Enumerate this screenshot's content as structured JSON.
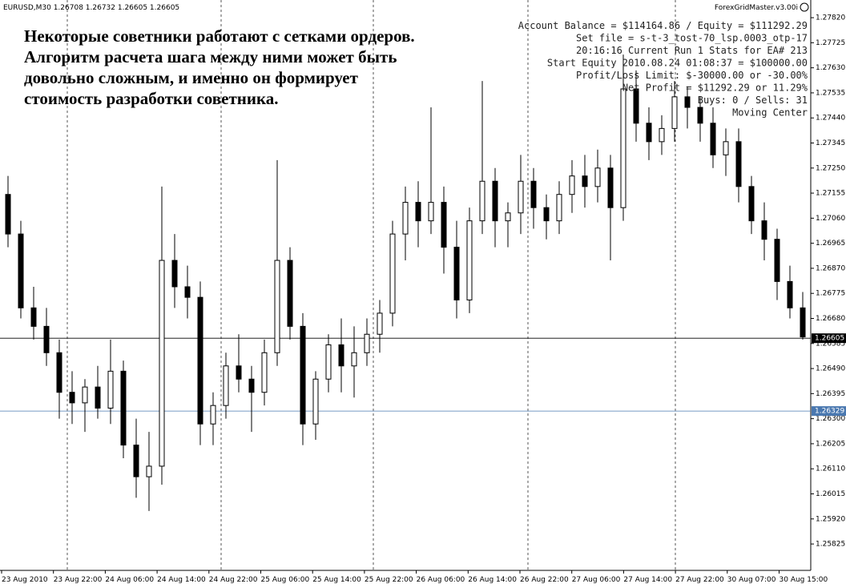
{
  "chart_data": {
    "type": "candlestick",
    "symbol_header": "EURUSD,M30  1.26708 1.26732 1.26605 1.26605",
    "ea_name": "ForexGridMaster.v3.00i",
    "annotation": [
      "Некоторые советники работают с сетками ордеров.",
      "Алгоритм расчета шага между ними может быть",
      "довольно сложным, и именно он формирует",
      "стоимость разработки советника."
    ],
    "stats": [
      "Account Balance = $114164.86 / Equity = $111292.29",
      "Set file = s-t-3_tost-70_lsp.0003_otp-17",
      "20:16:16  Current Run 1 Stats for EA# 213",
      "Start Equity 2010.08.24 01:08:37 = $100000.00",
      "Profit/Loss Limit: $-30000.00 or -30.00%",
      "Net Profit = $11292.29 or 11.29%",
      "Buys: 0  /  Sells: 31",
      "Moving Center"
    ],
    "x_labels": [
      "23 Aug 2010",
      "23 Aug 22:00",
      "24 Aug 06:00",
      "24 Aug 14:00",
      "24 Aug 22:00",
      "25 Aug 06:00",
      "25 Aug 14:00",
      "25 Aug 22:00",
      "26 Aug 06:00",
      "26 Aug 14:00",
      "26 Aug 22:00",
      "27 Aug 06:00",
      "27 Aug 14:00",
      "27 Aug 22:00",
      "30 Aug 07:00",
      "30 Aug 15:00"
    ],
    "ylim": [
      1.25725,
      1.27887
    ],
    "yticks": [
      {
        "value": 1.2782,
        "label": "1.27820"
      },
      {
        "value": 1.27725,
        "label": "1.27725"
      },
      {
        "value": 1.2763,
        "label": "1.27630"
      },
      {
        "value": 1.27535,
        "label": "1.27535"
      },
      {
        "value": 1.2744,
        "label": "1.27440"
      },
      {
        "value": 1.27345,
        "label": "1.27345"
      },
      {
        "value": 1.2725,
        "label": "1.27250"
      },
      {
        "value": 1.27155,
        "label": "1.27155"
      },
      {
        "value": 1.2706,
        "label": "1.27060"
      },
      {
        "value": 1.26965,
        "label": "1.26965"
      },
      {
        "value": 1.2687,
        "label": "1.26870"
      },
      {
        "value": 1.26775,
        "label": "1.26775"
      },
      {
        "value": 1.2668,
        "label": "1.26680"
      },
      {
        "value": 1.26585,
        "label": "1.26585"
      },
      {
        "value": 1.2649,
        "label": "1.26490"
      },
      {
        "value": 1.26395,
        "label": "1.26395"
      },
      {
        "value": 1.263,
        "label": "1.26300"
      },
      {
        "value": 1.26205,
        "label": "1.26205"
      },
      {
        "value": 1.2611,
        "label": "1.26110"
      },
      {
        "value": 1.26015,
        "label": "1.26015"
      },
      {
        "value": 1.2592,
        "label": "1.25920"
      },
      {
        "value": 1.25825,
        "label": "1.25825"
      }
    ],
    "price_markers": [
      {
        "value": 1.26605,
        "label": "1.26605",
        "color": "#000000"
      },
      {
        "value": 1.26329,
        "label": "1.26329",
        "color": "#4a78b0"
      }
    ],
    "ohlc": [
      [
        1.2715,
        1.2722,
        1.2695,
        1.27
      ],
      [
        1.27,
        1.2705,
        1.2668,
        1.2672
      ],
      [
        1.2672,
        1.268,
        1.266,
        1.2665
      ],
      [
        1.2665,
        1.2672,
        1.265,
        1.2655
      ],
      [
        1.2655,
        1.266,
        1.263,
        1.264
      ],
      [
        1.264,
        1.2648,
        1.2628,
        1.2636
      ],
      [
        1.2636,
        1.2645,
        1.2625,
        1.2642
      ],
      [
        1.2642,
        1.265,
        1.263,
        1.2634
      ],
      [
        1.2634,
        1.266,
        1.2628,
        1.2648
      ],
      [
        1.2648,
        1.2652,
        1.2615,
        1.262
      ],
      [
        1.262,
        1.263,
        1.26,
        1.2608
      ],
      [
        1.2608,
        1.2625,
        1.2595,
        1.2612
      ],
      [
        1.2612,
        1.2718,
        1.2605,
        1.269
      ],
      [
        1.269,
        1.27,
        1.2672,
        1.268
      ],
      [
        1.268,
        1.2688,
        1.2668,
        1.2676
      ],
      [
        1.2676,
        1.2682,
        1.262,
        1.2628
      ],
      [
        1.2628,
        1.264,
        1.262,
        1.2635
      ],
      [
        1.2635,
        1.2655,
        1.263,
        1.265
      ],
      [
        1.265,
        1.2662,
        1.264,
        1.2645
      ],
      [
        1.2645,
        1.265,
        1.2625,
        1.264
      ],
      [
        1.264,
        1.266,
        1.2635,
        1.2655
      ],
      [
        1.2655,
        1.2728,
        1.265,
        1.269
      ],
      [
        1.269,
        1.2695,
        1.266,
        1.2665
      ],
      [
        1.2665,
        1.267,
        1.262,
        1.2628
      ],
      [
        1.2628,
        1.2648,
        1.2622,
        1.2645
      ],
      [
        1.2645,
        1.2662,
        1.264,
        1.2658
      ],
      [
        1.2658,
        1.2668,
        1.264,
        1.265
      ],
      [
        1.265,
        1.2665,
        1.2638,
        1.2655
      ],
      [
        1.2655,
        1.2668,
        1.265,
        1.2662
      ],
      [
        1.2662,
        1.2675,
        1.2655,
        1.267
      ],
      [
        1.267,
        1.2705,
        1.2665,
        1.27
      ],
      [
        1.27,
        1.2718,
        1.269,
        1.2712
      ],
      [
        1.2712,
        1.272,
        1.2695,
        1.2705
      ],
      [
        1.2705,
        1.2748,
        1.27,
        1.2712
      ],
      [
        1.2712,
        1.2718,
        1.2685,
        1.2695
      ],
      [
        1.2695,
        1.2705,
        1.2668,
        1.2675
      ],
      [
        1.2675,
        1.271,
        1.267,
        1.2705
      ],
      [
        1.2705,
        1.2758,
        1.27,
        1.272
      ],
      [
        1.272,
        1.2725,
        1.2695,
        1.2705
      ],
      [
        1.2705,
        1.2712,
        1.2695,
        1.2708
      ],
      [
        1.2708,
        1.273,
        1.27,
        1.272
      ],
      [
        1.272,
        1.2725,
        1.2702,
        1.271
      ],
      [
        1.271,
        1.2715,
        1.2698,
        1.2705
      ],
      [
        1.2705,
        1.272,
        1.27,
        1.2715
      ],
      [
        1.2715,
        1.2728,
        1.2708,
        1.2722
      ],
      [
        1.2722,
        1.273,
        1.271,
        1.2718
      ],
      [
        1.2718,
        1.2732,
        1.2712,
        1.2725
      ],
      [
        1.2725,
        1.273,
        1.269,
        1.271
      ],
      [
        1.271,
        1.2768,
        1.2705,
        1.2755
      ],
      [
        1.2755,
        1.2762,
        1.2735,
        1.2742
      ],
      [
        1.2742,
        1.2748,
        1.2728,
        1.2735
      ],
      [
        1.2735,
        1.2745,
        1.273,
        1.274
      ],
      [
        1.274,
        1.2758,
        1.2735,
        1.2752
      ],
      [
        1.2752,
        1.2756,
        1.274,
        1.2748
      ],
      [
        1.2748,
        1.2752,
        1.2735,
        1.2742
      ],
      [
        1.2742,
        1.2748,
        1.2725,
        1.273
      ],
      [
        1.273,
        1.274,
        1.2722,
        1.2735
      ],
      [
        1.2735,
        1.274,
        1.2712,
        1.2718
      ],
      [
        1.2718,
        1.2722,
        1.27,
        1.2705
      ],
      [
        1.2705,
        1.2712,
        1.269,
        1.2698
      ],
      [
        1.2698,
        1.2702,
        1.2675,
        1.2682
      ],
      [
        1.2682,
        1.2688,
        1.2668,
        1.2672
      ],
      [
        1.2672,
        1.2678,
        1.266,
        1.2661
      ]
    ],
    "up_color": "#ffffff",
    "down_color": "#000000",
    "wick_color": "#000000"
  }
}
